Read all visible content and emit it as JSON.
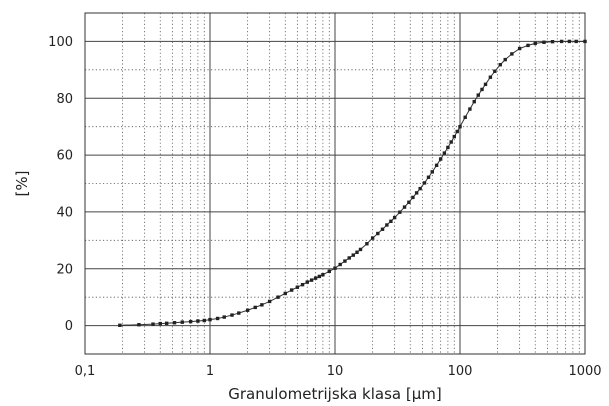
{
  "chart_data": {
    "type": "scatter",
    "xlabel": "Granulometrijska klasa [µm]",
    "ylabel": "[%]",
    "x_scale": "log",
    "xlim": [
      0.1,
      1000
    ],
    "ylim": [
      -10,
      110
    ],
    "grid": true,
    "x_ticks": [
      {
        "value": 0.1,
        "label": "0,1"
      },
      {
        "value": 1,
        "label": "1"
      },
      {
        "value": 10,
        "label": "10"
      },
      {
        "value": 100,
        "label": "100"
      },
      {
        "value": 1000,
        "label": "1000"
      }
    ],
    "y_ticks": [
      {
        "value": 0,
        "label": "0"
      },
      {
        "value": 20,
        "label": "20"
      },
      {
        "value": 40,
        "label": "40"
      },
      {
        "value": 60,
        "label": "60"
      },
      {
        "value": 80,
        "label": "80"
      },
      {
        "value": 100,
        "label": "100"
      }
    ],
    "series": [
      {
        "marker_color": "#222222",
        "x": [
          0.19,
          0.27,
          0.35,
          0.4,
          0.45,
          0.52,
          0.6,
          0.7,
          0.8,
          0.9,
          1.0,
          1.15,
          1.3,
          1.5,
          1.7,
          2.0,
          2.3,
          2.6,
          3.0,
          3.5,
          4.0,
          4.5,
          5.0,
          5.5,
          6.0,
          6.5,
          7.0,
          7.5,
          8.0,
          9.0,
          10,
          11,
          12,
          13,
          14,
          15,
          16,
          18,
          20,
          22,
          24,
          26,
          28,
          30,
          33,
          36,
          39,
          42,
          45,
          48,
          52,
          56,
          60,
          65,
          70,
          75,
          80,
          85,
          90,
          95,
          100,
          110,
          120,
          130,
          140,
          150,
          160,
          175,
          190,
          210,
          230,
          260,
          300,
          350,
          400,
          470,
          550,
          650,
          750,
          850,
          1000
        ],
        "y": [
          0.1,
          0.3,
          0.5,
          0.7,
          0.8,
          1.0,
          1.2,
          1.4,
          1.6,
          1.8,
          2.1,
          2.5,
          3.0,
          3.7,
          4.4,
          5.4,
          6.4,
          7.3,
          8.5,
          10.0,
          11.3,
          12.5,
          13.5,
          14.4,
          15.3,
          16.0,
          16.7,
          17.3,
          17.9,
          19.1,
          20.2,
          21.5,
          22.7,
          23.8,
          24.8,
          25.8,
          26.8,
          28.8,
          30.8,
          32.4,
          33.9,
          35.4,
          36.7,
          38.0,
          39.9,
          41.7,
          43.4,
          45.1,
          46.7,
          48.2,
          50.2,
          52.2,
          54.1,
          56.4,
          58.6,
          60.7,
          62.7,
          64.6,
          66.5,
          68.3,
          70.0,
          73.3,
          76.2,
          78.8,
          81.1,
          83.1,
          84.9,
          87.4,
          89.5,
          91.8,
          93.6,
          95.6,
          97.5,
          98.6,
          99.3,
          99.7,
          99.9,
          100.0,
          100.0,
          100.0,
          100.0
        ]
      }
    ]
  }
}
